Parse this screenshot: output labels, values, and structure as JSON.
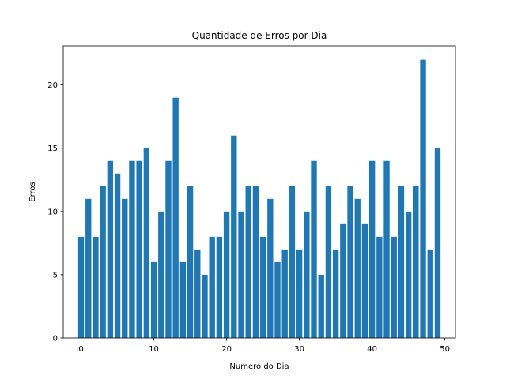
{
  "chart_data": {
    "type": "bar",
    "title": "Quantidade de Erros por Dia",
    "xlabel": "Numero do Dia",
    "ylabel": "Erros",
    "x": [
      0,
      1,
      2,
      3,
      4,
      5,
      6,
      7,
      8,
      9,
      10,
      11,
      12,
      13,
      14,
      15,
      16,
      17,
      18,
      19,
      20,
      21,
      22,
      23,
      24,
      25,
      26,
      27,
      28,
      29,
      30,
      31,
      32,
      33,
      34,
      35,
      36,
      37,
      38,
      39,
      40,
      41,
      42,
      43,
      44,
      45,
      46,
      47,
      48,
      49
    ],
    "values": [
      8,
      11,
      8,
      12,
      14,
      13,
      11,
      14,
      14,
      15,
      6,
      10,
      14,
      19,
      6,
      12,
      7,
      5,
      8,
      8,
      10,
      16,
      10,
      12,
      12,
      8,
      11,
      6,
      7,
      12,
      7,
      10,
      14,
      5,
      12,
      7,
      9,
      12,
      11,
      9,
      14,
      8,
      14,
      8,
      12,
      10,
      12,
      22,
      7,
      15
    ],
    "xlim": [
      -2.45,
      51.45
    ],
    "ylim": [
      0,
      23.1
    ],
    "xticks": [
      0,
      10,
      20,
      30,
      40,
      50
    ],
    "yticks": [
      0,
      5,
      10,
      15,
      20
    ],
    "bar_color": "#1f77b4",
    "grid": false
  }
}
